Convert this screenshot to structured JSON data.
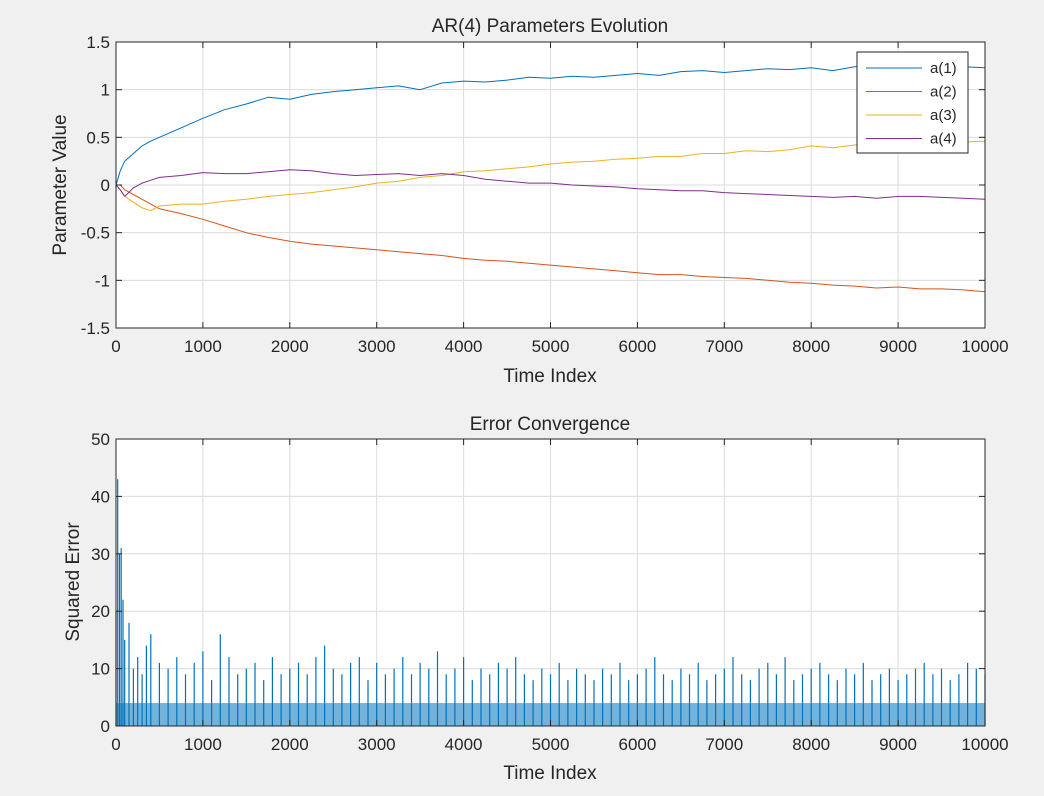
{
  "figure": {
    "background": "#f0f0f0"
  },
  "chart_data": [
    {
      "type": "line",
      "title": "AR(4) Parameters Evolution",
      "xlabel": "Time Index",
      "ylabel": "Parameter Value",
      "xlim": [
        0,
        10000
      ],
      "ylim": [
        -1.5,
        1.5
      ],
      "xticks": [
        0,
        1000,
        2000,
        3000,
        4000,
        5000,
        6000,
        7000,
        8000,
        9000,
        10000
      ],
      "xtick_labels": [
        "0",
        "1000",
        "2000",
        "3000",
        "4000",
        "5000",
        "6000",
        "7000",
        "8000",
        "9000",
        "10000"
      ],
      "yticks": [
        1.5,
        1,
        0.5,
        0,
        -0.5,
        -1,
        -1.5
      ],
      "ytick_labels": [
        "1.5",
        "1",
        "0.5",
        "0",
        "-0.5",
        "-1",
        "-1.5"
      ],
      "grid": true,
      "legend_position": "top-right",
      "x": [
        0,
        50,
        100,
        200,
        300,
        400,
        500,
        750,
        1000,
        1250,
        1500,
        1750,
        2000,
        2250,
        2500,
        2750,
        3000,
        3250,
        3500,
        3750,
        4000,
        4250,
        4500,
        4750,
        5000,
        5250,
        5500,
        5750,
        6000,
        6250,
        6500,
        6750,
        7000,
        7250,
        7500,
        7750,
        8000,
        8250,
        8500,
        8750,
        9000,
        9250,
        9500,
        9750,
        10000
      ],
      "series": [
        {
          "name": "a(1)",
          "color": "#0072BD",
          "values": [
            0.0,
            0.15,
            0.25,
            0.33,
            0.41,
            0.46,
            0.5,
            0.6,
            0.7,
            0.79,
            0.85,
            0.92,
            0.9,
            0.95,
            0.98,
            1.0,
            1.02,
            1.04,
            1.0,
            1.07,
            1.09,
            1.08,
            1.1,
            1.13,
            1.12,
            1.14,
            1.13,
            1.15,
            1.17,
            1.15,
            1.19,
            1.2,
            1.18,
            1.2,
            1.22,
            1.21,
            1.23,
            1.2,
            1.24,
            1.25,
            1.2,
            1.22,
            1.25,
            1.24,
            1.23
          ]
        },
        {
          "name": "a(2)",
          "color": "#D95319",
          "values": [
            0.0,
            0.0,
            -0.05,
            -0.1,
            -0.15,
            -0.2,
            -0.25,
            -0.3,
            -0.36,
            -0.43,
            -0.5,
            -0.55,
            -0.59,
            -0.62,
            -0.64,
            -0.66,
            -0.68,
            -0.7,
            -0.72,
            -0.74,
            -0.77,
            -0.79,
            -0.8,
            -0.82,
            -0.84,
            -0.86,
            -0.88,
            -0.9,
            -0.92,
            -0.94,
            -0.94,
            -0.96,
            -0.97,
            -0.98,
            -1.0,
            -1.02,
            -1.03,
            -1.05,
            -1.06,
            -1.08,
            -1.07,
            -1.09,
            -1.09,
            -1.1,
            -1.12
          ]
        },
        {
          "name": "a(3)",
          "color": "#EDB120",
          "values": [
            0.0,
            -0.05,
            -0.12,
            -0.18,
            -0.24,
            -0.27,
            -0.22,
            -0.2,
            -0.2,
            -0.17,
            -0.15,
            -0.12,
            -0.1,
            -0.08,
            -0.05,
            -0.02,
            0.02,
            0.04,
            0.08,
            0.1,
            0.14,
            0.15,
            0.17,
            0.19,
            0.22,
            0.24,
            0.25,
            0.27,
            0.28,
            0.3,
            0.3,
            0.33,
            0.33,
            0.36,
            0.35,
            0.37,
            0.41,
            0.39,
            0.42,
            0.44,
            0.42,
            0.44,
            0.45,
            0.45,
            0.46
          ]
        },
        {
          "name": "a(4)",
          "color": "#7E2F8E",
          "values": [
            0.0,
            -0.05,
            -0.12,
            -0.03,
            0.02,
            0.05,
            0.08,
            0.1,
            0.13,
            0.12,
            0.12,
            0.14,
            0.16,
            0.15,
            0.12,
            0.1,
            0.11,
            0.12,
            0.1,
            0.12,
            0.1,
            0.06,
            0.04,
            0.02,
            0.02,
            0.0,
            -0.01,
            -0.02,
            -0.04,
            -0.05,
            -0.06,
            -0.06,
            -0.08,
            -0.09,
            -0.1,
            -0.11,
            -0.12,
            -0.13,
            -0.12,
            -0.14,
            -0.12,
            -0.12,
            -0.13,
            -0.14,
            -0.15
          ]
        }
      ]
    },
    {
      "type": "line",
      "title": "Error Convergence",
      "xlabel": "Time Index",
      "ylabel": "Squared Error",
      "xlim": [
        0,
        10000
      ],
      "ylim": [
        0,
        50
      ],
      "xticks": [
        0,
        1000,
        2000,
        3000,
        4000,
        5000,
        6000,
        7000,
        8000,
        9000,
        10000
      ],
      "xtick_labels": [
        "0",
        "1000",
        "2000",
        "3000",
        "4000",
        "5000",
        "6000",
        "7000",
        "8000",
        "9000",
        "10000"
      ],
      "yticks": [
        50,
        40,
        30,
        20,
        10,
        0
      ],
      "ytick_labels": [
        "50",
        "40",
        "30",
        "20",
        "10",
        "0"
      ],
      "grid": true,
      "series": [
        {
          "color": "#0072BD",
          "x": [
            0,
            20,
            40,
            60,
            80,
            100,
            150,
            200,
            250,
            300,
            350,
            400,
            500,
            600,
            700,
            800,
            900,
            1000,
            1100,
            1200,
            1300,
            1400,
            1500,
            1600,
            1700,
            1800,
            1900,
            2000,
            2100,
            2200,
            2300,
            2400,
            2500,
            2600,
            2700,
            2800,
            2900,
            3000,
            3100,
            3200,
            3300,
            3400,
            3500,
            3600,
            3700,
            3800,
            3900,
            4000,
            4100,
            4200,
            4300,
            4400,
            4500,
            4600,
            4700,
            4800,
            4900,
            5000,
            5100,
            5200,
            5300,
            5400,
            5500,
            5600,
            5700,
            5800,
            5900,
            6000,
            6100,
            6200,
            6300,
            6400,
            6500,
            6600,
            6700,
            6800,
            6900,
            7000,
            7100,
            7200,
            7300,
            7400,
            7500,
            7600,
            7700,
            7800,
            7900,
            8000,
            8100,
            8200,
            8300,
            8400,
            8500,
            8600,
            8700,
            8800,
            8900,
            9000,
            9100,
            9200,
            9300,
            9400,
            9500,
            9600,
            9700,
            9800,
            9900,
            10000
          ],
          "values": [
            20,
            43,
            30,
            31,
            22,
            15,
            18,
            10,
            12,
            9,
            14,
            16,
            11,
            10,
            12,
            9,
            11,
            13,
            8,
            16,
            12,
            9,
            10,
            11,
            8,
            12,
            9,
            10,
            11,
            9,
            12,
            14,
            10,
            9,
            11,
            12,
            8,
            11,
            9,
            10,
            12,
            9,
            11,
            10,
            13,
            9,
            10,
            12,
            8,
            10,
            9,
            11,
            10,
            12,
            9,
            8,
            10,
            9,
            11,
            8,
            10,
            9,
            8,
            10,
            9,
            11,
            8,
            9,
            10,
            12,
            9,
            8,
            10,
            9,
            11,
            8,
            9,
            10,
            12,
            9,
            8,
            10,
            11,
            9,
            12,
            8,
            9,
            10,
            11,
            9,
            8,
            10,
            9,
            11,
            8,
            9,
            10,
            8,
            9,
            10,
            11,
            9,
            10,
            8,
            9,
            11,
            10,
            9
          ]
        }
      ]
    }
  ]
}
